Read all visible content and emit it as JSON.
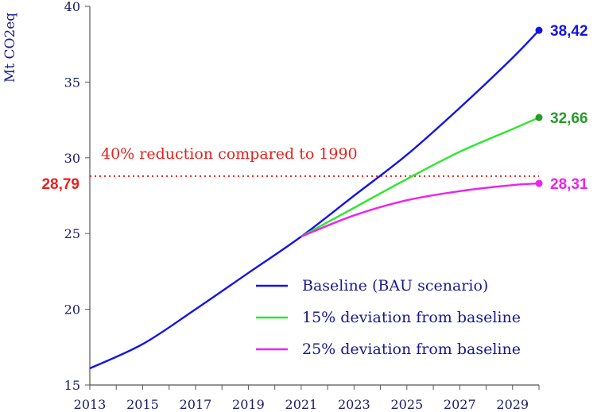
{
  "chart_data": {
    "type": "line",
    "ylabel": "Mt  CO2eq",
    "xlabel": "",
    "xlim": [
      2013,
      2030
    ],
    "ylim": [
      15,
      40
    ],
    "x_ticks": [
      "2013",
      "2015",
      "2017",
      "2019",
      "2021",
      "2023",
      "2025",
      "2027",
      "2029"
    ],
    "y_ticks": [
      "15",
      "20",
      "25",
      "30",
      "35",
      "40"
    ],
    "grid": false,
    "legend_position": "bottom-right",
    "series": [
      {
        "name": "Baseline (BAU scenario)",
        "color": "#1414e6",
        "x": [
          2013,
          2015,
          2017,
          2019,
          2021,
          2023,
          2025,
          2027,
          2029,
          2030
        ],
        "y": [
          16.1,
          17.7,
          20.0,
          22.4,
          24.8,
          27.5,
          30.2,
          33.3,
          36.6,
          38.42
        ],
        "end_label": "38,42"
      },
      {
        "name": "15% deviation from baseline",
        "color": "#2ee62e",
        "x": [
          2021,
          2023,
          2025,
          2027,
          2029,
          2030
        ],
        "y": [
          24.8,
          26.7,
          28.6,
          30.4,
          31.9,
          32.66
        ],
        "end_label": "32,66"
      },
      {
        "name": "25% deviation from baseline",
        "color": "#ee22ee",
        "x": [
          2021,
          2023,
          2025,
          2027,
          2029,
          2030
        ],
        "y": [
          24.8,
          26.2,
          27.2,
          27.8,
          28.2,
          28.31
        ],
        "end_label": "28,31"
      }
    ],
    "reference_line": {
      "y": 28.79,
      "label": "28,79",
      "annotation": "40% reduction compared to 1990",
      "color": "#e8201c",
      "style": "dotted"
    },
    "end_label_colors": [
      "#1414e6",
      "#2a9a2a",
      "#ee22ee"
    ]
  }
}
